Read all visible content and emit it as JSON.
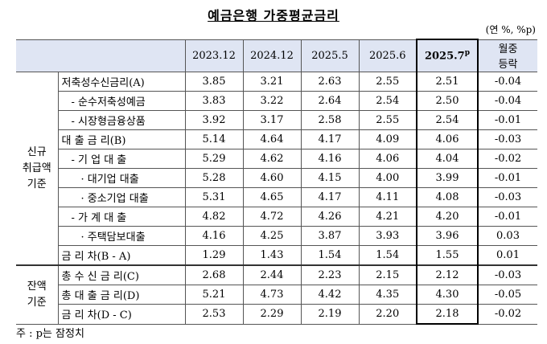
{
  "title": "예금은행 가중평균금리",
  "unit": "(연 %, %p)",
  "table": {
    "columns": [
      {
        "text": "2023.12"
      },
      {
        "text": "2024.12"
      },
      {
        "text": "2025.5"
      },
      {
        "text": "2025.6"
      },
      {
        "text": "2025.7",
        "sup": "p"
      },
      {
        "lines": [
          "월중",
          "등락"
        ]
      }
    ],
    "groups": [
      {
        "label": [
          "신규",
          "취급액",
          "기준"
        ],
        "rows": [
          {
            "label": "저축성수신금리(A)",
            "values": [
              "3.85",
              "3.21",
              "2.63",
              "2.55",
              "2.51",
              "-0.04"
            ]
          },
          {
            "label": "- 순수저축성예금",
            "values": [
              "3.83",
              "3.22",
              "2.64",
              "2.54",
              "2.50",
              "-0.04"
            ]
          },
          {
            "label": "- 시장형금융상품",
            "values": [
              "3.92",
              "3.17",
              "2.58",
              "2.55",
              "2.54",
              "-0.01"
            ]
          },
          {
            "label": "대 출 금 리(B)",
            "values": [
              "5.14",
              "4.64",
              "4.17",
              "4.09",
              "4.06",
              "-0.03"
            ]
          },
          {
            "label": "- 기 업 대 출",
            "values": [
              "5.29",
              "4.62",
              "4.16",
              "4.06",
              "4.04",
              "-0.02"
            ]
          },
          {
            "label": "· 대기업 대출",
            "values": [
              "5.28",
              "4.60",
              "4.15",
              "4.00",
              "3.99",
              "-0.01"
            ]
          },
          {
            "label": "· 중소기업 대출",
            "values": [
              "5.31",
              "4.65",
              "4.17",
              "4.11",
              "4.08",
              "-0.03"
            ]
          },
          {
            "label": "- 가 계 대 출",
            "values": [
              "4.82",
              "4.72",
              "4.26",
              "4.21",
              "4.20",
              "-0.01"
            ]
          },
          {
            "label": "· 주택담보대출",
            "values": [
              "4.16",
              "4.25",
              "3.87",
              "3.93",
              "3.96",
              "0.03"
            ]
          },
          {
            "label": "금 리 차(B - A)",
            "values": [
              "1.29",
              "1.43",
              "1.54",
              "1.54",
              "1.55",
              "0.01"
            ]
          }
        ]
      },
      {
        "label": [
          "잔액",
          "기준"
        ],
        "rows": [
          {
            "label": "총 수 신 금 리(C)",
            "values": [
              "2.68",
              "2.44",
              "2.23",
              "2.15",
              "2.12",
              "-0.03"
            ]
          },
          {
            "label": "총 대 출 금 리(D)",
            "values": [
              "5.21",
              "4.73",
              "4.42",
              "4.35",
              "4.30",
              "-0.05"
            ]
          },
          {
            "label": "금 리 차(D - C)",
            "values": [
              "2.53",
              "2.29",
              "2.19",
              "2.20",
              "2.18",
              "-0.02"
            ]
          }
        ]
      }
    ]
  },
  "footnote": "주 : p는 잠정치"
}
